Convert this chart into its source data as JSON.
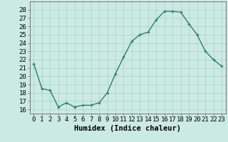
{
  "x": [
    0,
    1,
    2,
    3,
    4,
    5,
    6,
    7,
    8,
    9,
    10,
    11,
    12,
    13,
    14,
    15,
    16,
    17,
    18,
    19,
    20,
    21,
    22,
    23
  ],
  "y": [
    21.5,
    18.5,
    18.3,
    16.3,
    16.8,
    16.3,
    16.5,
    16.5,
    16.8,
    18.0,
    20.3,
    22.3,
    24.2,
    25.0,
    25.3,
    26.8,
    27.8,
    27.8,
    27.7,
    26.3,
    25.0,
    23.0,
    22.0,
    21.2
  ],
  "line_color": "#2d7d6e",
  "marker": "+",
  "marker_size": 3,
  "background_color": "#cceae4",
  "grid_color": "#a8cfc8",
  "xlabel": "Humidex (Indice chaleur)",
  "xlim": [
    -0.5,
    23.5
  ],
  "ylim": [
    15.5,
    29
  ],
  "yticks": [
    16,
    17,
    18,
    19,
    20,
    21,
    22,
    23,
    24,
    25,
    26,
    27,
    28
  ],
  "xticks": [
    0,
    1,
    2,
    3,
    4,
    5,
    6,
    7,
    8,
    9,
    10,
    11,
    12,
    13,
    14,
    15,
    16,
    17,
    18,
    19,
    20,
    21,
    22,
    23
  ],
  "xtick_labels": [
    "0",
    "1",
    "2",
    "3",
    "4",
    "5",
    "6",
    "7",
    "8",
    "9",
    "10",
    "11",
    "12",
    "13",
    "14",
    "15",
    "16",
    "17",
    "18",
    "19",
    "20",
    "21",
    "22",
    "23"
  ],
  "tick_fontsize": 6.5,
  "xlabel_fontsize": 7.5,
  "line_width": 1.0
}
